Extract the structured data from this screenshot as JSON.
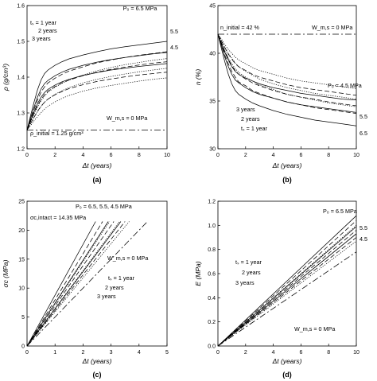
{
  "chart_data": [
    {
      "type": "line",
      "panel_label": "(a)",
      "xlabel": "Δt (years)",
      "ylabel": "ρ (g/cm³)",
      "xlim": [
        0,
        10
      ],
      "ylim": [
        1.2,
        1.6
      ],
      "xticks": [
        "0",
        "2",
        "4",
        "6",
        "8",
        "10"
      ],
      "yticks": [
        "1.2",
        "1.3",
        "1.4",
        "1.5",
        "1.6"
      ],
      "x": [
        0,
        0.25,
        0.5,
        0.75,
        1,
        1.25,
        1.5,
        2,
        2.5,
        3,
        4,
        5,
        6,
        7,
        8,
        9,
        10
      ],
      "series": [
        {
          "name": "P₀ = 6.5 MPa, tₛ = 1 year",
          "values": [
            1.252,
            1.292,
            1.33,
            1.365,
            1.392,
            1.41,
            1.42,
            1.433,
            1.443,
            1.451,
            1.462,
            1.471,
            1.479,
            1.485,
            1.49,
            1.495,
            1.5
          ]
        },
        {
          "name": "P₀ = 6.5 MPa, tₛ = 2 years",
          "values": [
            1.252,
            1.282,
            1.31,
            1.336,
            1.358,
            1.373,
            1.384,
            1.397,
            1.408,
            1.417,
            1.429,
            1.44,
            1.448,
            1.455,
            1.461,
            1.466,
            1.471
          ]
        },
        {
          "name": "P₀ = 6.5 MPa, tₛ = 3 years",
          "values": [
            1.252,
            1.275,
            1.297,
            1.317,
            1.334,
            1.347,
            1.358,
            1.372,
            1.383,
            1.392,
            1.406,
            1.418,
            1.427,
            1.435,
            1.441,
            1.447,
            1.452
          ]
        },
        {
          "name": "P₀ = 5.5 MPa, tₛ = 1 year",
          "values": [
            1.252,
            1.285,
            1.316,
            1.345,
            1.367,
            1.382,
            1.391,
            1.404,
            1.414,
            1.422,
            1.433,
            1.442,
            1.449,
            1.455,
            1.46,
            1.465,
            1.469
          ]
        },
        {
          "name": "P₀ = 5.5 MPa, tₛ = 2 years",
          "values": [
            1.252,
            1.276,
            1.299,
            1.32,
            1.338,
            1.351,
            1.361,
            1.374,
            1.384,
            1.392,
            1.404,
            1.414,
            1.422,
            1.428,
            1.434,
            1.439,
            1.443
          ]
        },
        {
          "name": "P₀ = 5.5 MPa, tₛ = 3 years",
          "values": [
            1.252,
            1.27,
            1.288,
            1.304,
            1.318,
            1.33,
            1.339,
            1.352,
            1.362,
            1.371,
            1.384,
            1.394,
            1.402,
            1.409,
            1.415,
            1.42,
            1.425
          ]
        },
        {
          "name": "P₀ = 4.5 MPa, tₛ = 1 year",
          "values": [
            1.252,
            1.278,
            1.303,
            1.326,
            1.344,
            1.357,
            1.366,
            1.378,
            1.387,
            1.394,
            1.405,
            1.413,
            1.42,
            1.425,
            1.43,
            1.434,
            1.438
          ]
        },
        {
          "name": "P₀ = 4.5 MPa, tₛ = 2 years",
          "values": [
            1.252,
            1.27,
            1.288,
            1.305,
            1.319,
            1.33,
            1.339,
            1.351,
            1.36,
            1.368,
            1.379,
            1.388,
            1.395,
            1.401,
            1.406,
            1.41,
            1.414
          ]
        },
        {
          "name": "P₀ = 4.5 MPa, tₛ = 3 years",
          "values": [
            1.252,
            1.265,
            1.278,
            1.29,
            1.301,
            1.311,
            1.319,
            1.331,
            1.341,
            1.349,
            1.361,
            1.37,
            1.377,
            1.383,
            1.389,
            1.394,
            1.398
          ]
        },
        {
          "name": "W_m,s = 0 MPa",
          "values": [
            1.252,
            1.252,
            1.252,
            1.252,
            1.252,
            1.252,
            1.252,
            1.252,
            1.252,
            1.252,
            1.252,
            1.252,
            1.252,
            1.252,
            1.252,
            1.252,
            1.252
          ]
        }
      ],
      "annotations": {
        "p0_label": "P₀ = 6.5 MPa",
        "level_55": "5.5",
        "level_45": "4.5",
        "ts1": "tₛ = 1 year",
        "ts2": "2 years",
        "ts3": "3 years",
        "wms": "W_m,s = 0 MPa",
        "initial": "ρ_initial = 1.25 g/cm³"
      }
    },
    {
      "type": "line",
      "panel_label": "(b)",
      "xlabel": "Δt (years)",
      "ylabel": "n (%)",
      "xlim": [
        0,
        10
      ],
      "ylim": [
        30,
        45
      ],
      "xticks": [
        "0",
        "2",
        "4",
        "6",
        "8",
        "10"
      ],
      "yticks": [
        "30",
        "35",
        "40",
        "45"
      ],
      "x": [
        0,
        0.25,
        0.5,
        0.75,
        1,
        1.25,
        1.5,
        2,
        2.5,
        3,
        4,
        5,
        6,
        7,
        8,
        9,
        10
      ],
      "series": [
        {
          "name": "P₀ = 6.5 MPa, tₛ = 1 year",
          "values": [
            42.0,
            40.5,
            39.1,
            37.8,
            36.8,
            36.1,
            35.7,
            35.2,
            34.8,
            34.5,
            34.0,
            33.6,
            33.3,
            33.0,
            32.8,
            32.6,
            32.4
          ]
        },
        {
          "name": "P₀ = 6.5 MPa, tₛ = 2 years",
          "values": [
            42.0,
            40.9,
            39.8,
            38.9,
            38.1,
            37.5,
            37.0,
            36.6,
            36.1,
            35.8,
            35.3,
            34.9,
            34.6,
            34.3,
            34.1,
            33.9,
            33.7
          ]
        },
        {
          "name": "P₀ = 6.5 MPa, tₛ = 3 years",
          "values": [
            42.0,
            41.1,
            40.3,
            39.5,
            38.9,
            38.4,
            38.0,
            37.5,
            37.1,
            36.7,
            36.2,
            35.7,
            35.4,
            35.1,
            34.8,
            34.6,
            34.4
          ]
        },
        {
          "name": "P₀ = 5.5 MPa, tₛ = 1 year",
          "values": [
            42.0,
            40.8,
            39.6,
            38.6,
            37.8,
            37.2,
            36.9,
            36.4,
            36.0,
            35.7,
            35.3,
            34.9,
            34.6,
            34.4,
            34.2,
            34.0,
            33.8
          ]
        },
        {
          "name": "P₀ = 5.5 MPa, tₛ = 2 years",
          "values": [
            42.0,
            41.1,
            40.2,
            39.4,
            38.7,
            38.2,
            37.8,
            37.3,
            36.9,
            36.6,
            36.1,
            35.7,
            35.4,
            35.2,
            34.9,
            34.7,
            34.5
          ]
        },
        {
          "name": "P₀ = 5.5 MPa, tₛ = 3 years",
          "values": [
            42.0,
            41.3,
            40.6,
            40.0,
            39.5,
            39.0,
            38.6,
            38.1,
            37.7,
            37.3,
            36.8,
            36.4,
            36.1,
            35.8,
            35.6,
            35.4,
            35.2
          ]
        },
        {
          "name": "P₀ = 4.5 MPa, tₛ = 1 year",
          "values": [
            42.0,
            41.0,
            40.1,
            39.3,
            38.6,
            38.1,
            37.8,
            37.4,
            37.1,
            36.8,
            36.4,
            36.1,
            35.8,
            35.6,
            35.4,
            35.2,
            35.1
          ]
        },
        {
          "name": "P₀ = 4.5 MPa, tₛ = 2 years",
          "values": [
            42.0,
            41.3,
            40.6,
            39.9,
            39.4,
            38.9,
            38.6,
            38.2,
            37.8,
            37.5,
            37.1,
            36.7,
            36.4,
            36.2,
            36.0,
            35.8,
            35.6
          ]
        },
        {
          "name": "P₀ = 4.5 MPa, tₛ = 3 years",
          "values": [
            42.0,
            41.5,
            40.9,
            40.4,
            40.0,
            39.6,
            39.3,
            38.9,
            38.5,
            38.2,
            37.8,
            37.4,
            37.1,
            36.9,
            36.7,
            36.5,
            36.3
          ]
        },
        {
          "name": "W_m,s = 0 MPa",
          "values": [
            42.0,
            42.0,
            42.0,
            42.0,
            42.0,
            42.0,
            42.0,
            42.0,
            42.0,
            42.0,
            42.0,
            42.0,
            42.0,
            42.0,
            42.0,
            42.0,
            42.0
          ]
        }
      ],
      "annotations": {
        "initial": "n_initial = 42 %",
        "wms": "W_m,s = 0 MPa",
        "p0_label": "P₀ = 4.5 MPa",
        "level_55": "5.5",
        "level_65": "6.5",
        "ts3": "3 years",
        "ts2": "2 years",
        "ts1": "tₛ = 1 year"
      }
    },
    {
      "type": "line",
      "panel_label": "(c)",
      "xlabel": "Δt (years)",
      "ylabel": "σc (MPa)",
      "xlim": [
        0,
        5
      ],
      "ylim": [
        0,
        25
      ],
      "xticks": [
        "0",
        "1",
        "2",
        "3",
        "4",
        "5"
      ],
      "yticks": [
        "0",
        "5",
        "10",
        "15",
        "20",
        "25"
      ],
      "series": [
        {
          "name": "P₀ = 6.5 MPa, tₛ = 1 year",
          "x": [
            0,
            2.45
          ],
          "values": [
            0,
            21.5
          ]
        },
        {
          "name": "P₀ = 6.5 MPa, tₛ = 2 years",
          "x": [
            0,
            2.7
          ],
          "values": [
            0,
            21.5
          ]
        },
        {
          "name": "P₀ = 6.5 MPa, tₛ = 3 years",
          "x": [
            0,
            2.95
          ],
          "values": [
            0,
            21.5
          ]
        },
        {
          "name": "P₀ = 5.5 MPa, tₛ = 1 year",
          "x": [
            0,
            2.9
          ],
          "values": [
            0,
            21.5
          ]
        },
        {
          "name": "P₀ = 5.5 MPa, tₛ = 2 years",
          "x": [
            0,
            3.1
          ],
          "values": [
            0,
            21.5
          ]
        },
        {
          "name": "P₀ = 5.5 MPa, tₛ = 3 years",
          "x": [
            0,
            3.3
          ],
          "values": [
            0,
            21.5
          ]
        },
        {
          "name": "P₀ = 4.5 MPa, tₛ = 1 year",
          "x": [
            0,
            3.35
          ],
          "values": [
            0,
            21.5
          ]
        },
        {
          "name": "P₀ = 4.5 MPa, tₛ = 2 years",
          "x": [
            0,
            3.5
          ],
          "values": [
            0,
            21.5
          ]
        },
        {
          "name": "P₀ = 4.5 MPa, tₛ = 3 years",
          "x": [
            0,
            3.65
          ],
          "values": [
            0,
            21.5
          ]
        },
        {
          "name": "W_m,s = 0 MPa",
          "x": [
            0,
            4.3
          ],
          "values": [
            0,
            21.5
          ]
        }
      ],
      "annotations": {
        "p0_label": "P₀ = 6.5, 5.5, 4.5 MPa",
        "intact": "σc,intact = 14.35 MPa",
        "wms": "W_m,s = 0 MPa",
        "ts1": "tₛ = 1 year",
        "ts2": "2 years",
        "ts3": "3 years"
      }
    },
    {
      "type": "line",
      "panel_label": "(d)",
      "xlabel": "Δt (years)",
      "ylabel": "E (MPa)",
      "xlim": [
        0,
        10
      ],
      "ylim": [
        0,
        1.2
      ],
      "xticks": [
        "0",
        "2",
        "4",
        "6",
        "8",
        "10"
      ],
      "yticks": [
        "0.0",
        "0.2",
        "0.4",
        "0.6",
        "0.8",
        "1.0",
        "1.2"
      ],
      "series": [
        {
          "name": "P₀ = 6.5 MPa, tₛ = 1 year",
          "x": [
            0,
            10
          ],
          "values": [
            0,
            1.08
          ]
        },
        {
          "name": "P₀ = 6.5 MPa, tₛ = 2 years",
          "x": [
            0,
            10
          ],
          "values": [
            0,
            1.04
          ]
        },
        {
          "name": "P₀ = 6.5 MPa, tₛ = 3 years",
          "x": [
            0,
            10
          ],
          "values": [
            0,
            1.0
          ]
        },
        {
          "name": "P₀ = 5.5 MPa, tₛ = 1 year",
          "x": [
            0,
            10
          ],
          "values": [
            0,
            0.99
          ]
        },
        {
          "name": "P₀ = 5.5 MPa, tₛ = 2 years",
          "x": [
            0,
            10
          ],
          "values": [
            0,
            0.96
          ]
        },
        {
          "name": "P₀ = 5.5 MPa, tₛ = 3 years",
          "x": [
            0,
            10
          ],
          "values": [
            0,
            0.93
          ]
        },
        {
          "name": "P₀ = 4.5 MPa, tₛ = 1 year",
          "x": [
            0,
            10
          ],
          "values": [
            0,
            0.93
          ]
        },
        {
          "name": "P₀ = 4.5 MPa, tₛ = 2 years",
          "x": [
            0,
            10
          ],
          "values": [
            0,
            0.9
          ]
        },
        {
          "name": "P₀ = 4.5 MPa, tₛ = 3 years",
          "x": [
            0,
            10
          ],
          "values": [
            0,
            0.87
          ]
        },
        {
          "name": "W_m,s = 0 MPa",
          "x": [
            0,
            10
          ],
          "values": [
            0,
            0.78
          ]
        }
      ],
      "annotations": {
        "p0_label": "P₀ = 6.5 MPa",
        "level_55": "5.5",
        "level_45": "4.5",
        "ts1": "tₛ = 1 year",
        "ts2": "2 years",
        "ts3": "3 years",
        "wms": "W_m,s = 0 MPa"
      }
    }
  ]
}
